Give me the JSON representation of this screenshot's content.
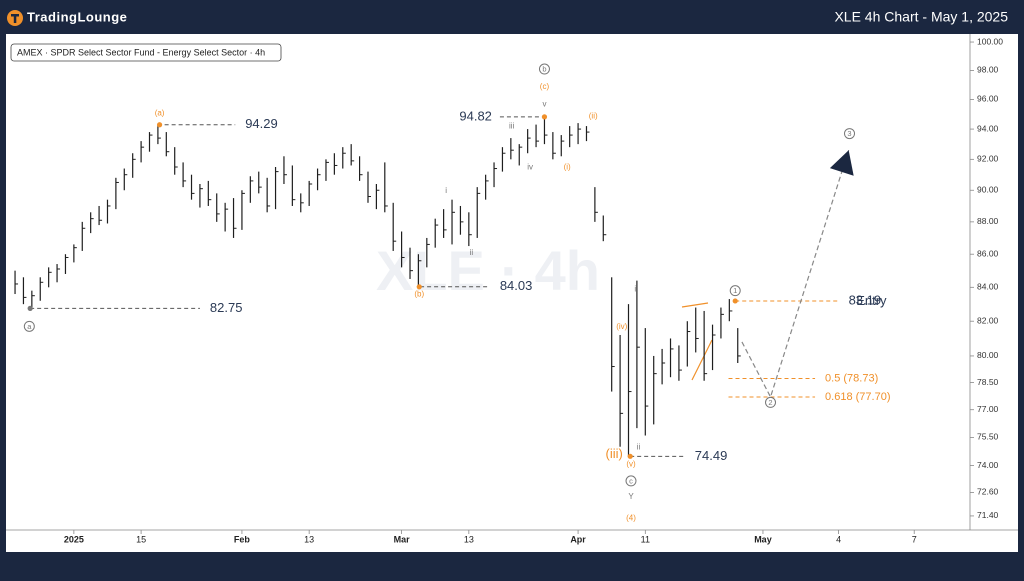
{
  "header": {
    "logo": "TradingLounge",
    "title": "XLE 4h Chart - May 1, 2025"
  },
  "chart_data": {
    "type": "ohlc",
    "symbol_label": "AMEX · SPDR Select Sector Fund - Energy Select Sector · 4h",
    "watermark": "XLE · 4h",
    "log_scale": true,
    "xlim": [
      -7.6,
      106.4
    ],
    "ylim": [
      70.79,
      100.43
    ],
    "xticks": [
      {
        "value": 0,
        "label": "2025"
      },
      {
        "value": 8,
        "label": "15"
      },
      {
        "value": 20,
        "label": "Feb"
      },
      {
        "value": 28,
        "label": "13"
      },
      {
        "value": 39,
        "label": "Mar"
      },
      {
        "value": 47,
        "label": "13"
      },
      {
        "value": 60,
        "label": "Apr"
      },
      {
        "value": 68,
        "label": "11"
      },
      {
        "value": 82,
        "label": "May"
      },
      {
        "value": 91,
        "label": "4"
      },
      {
        "value": 100,
        "label": "7"
      }
    ],
    "yticks": [
      {
        "value": 100,
        "label": "100.00"
      },
      {
        "value": 98,
        "label": "98.00"
      },
      {
        "value": 96,
        "label": "96.00"
      },
      {
        "value": 94,
        "label": "94.00"
      },
      {
        "value": 92,
        "label": "92.00"
      },
      {
        "value": 90,
        "label": "90.00"
      },
      {
        "value": 88,
        "label": "88.00"
      },
      {
        "value": 86,
        "label": "86.00"
      },
      {
        "value": 84,
        "label": "84.00"
      },
      {
        "value": 82,
        "label": "82.00"
      },
      {
        "value": 80,
        "label": "80.00"
      },
      {
        "value": 78.5,
        "label": "78.50"
      },
      {
        "value": 77,
        "label": "77.00"
      },
      {
        "value": 75.5,
        "label": "75.50"
      },
      {
        "value": 74,
        "label": "74.00"
      },
      {
        "value": 72.6,
        "label": "72.60"
      },
      {
        "value": 71.4,
        "label": "71.40"
      }
    ],
    "color": "#1e1e1e",
    "x": [
      -7,
      -6,
      -5,
      -4,
      -3,
      -2,
      -1,
      0,
      1,
      2,
      3,
      4,
      5,
      6,
      7,
      8,
      9,
      10,
      11,
      12,
      13,
      14,
      15,
      16,
      17,
      18,
      19,
      20,
      21,
      22,
      23,
      24,
      25,
      26,
      27,
      28,
      29,
      30,
      31,
      32,
      33,
      34,
      35,
      36,
      37,
      38,
      39,
      40,
      41,
      42,
      43,
      44,
      45,
      46,
      47,
      48,
      49,
      50,
      51,
      52,
      53,
      54,
      55,
      56,
      57,
      58,
      59,
      60,
      61,
      62,
      63,
      64,
      65,
      66,
      67,
      68,
      69,
      70,
      71,
      72,
      73,
      74,
      75,
      76,
      77,
      78,
      79
    ],
    "high": [
      85.0,
      84.6,
      83.8,
      84.6,
      85.2,
      85.4,
      86.0,
      86.6,
      88.0,
      88.6,
      89.0,
      89.4,
      90.8,
      91.4,
      92.4,
      93.2,
      93.8,
      94.29,
      93.8,
      92.8,
      91.8,
      91.0,
      90.4,
      90.6,
      89.8,
      89.2,
      89.5,
      90.0,
      90.9,
      91.2,
      90.8,
      91.5,
      92.2,
      91.6,
      89.8,
      90.6,
      91.4,
      92.0,
      92.4,
      92.8,
      93.0,
      92.2,
      91.2,
      90.4,
      91.8,
      89.2,
      87.4,
      86.4,
      86.0,
      87.0,
      88.2,
      88.8,
      89.4,
      89.0,
      88.6,
      90.2,
      91.0,
      91.8,
      92.8,
      93.4,
      93.0,
      94.0,
      94.3,
      94.82,
      93.8,
      93.6,
      94.2,
      94.4,
      94.2,
      90.2,
      88.4,
      84.6,
      81.2,
      83.0,
      84.4,
      81.6,
      80.0,
      80.4,
      81.0,
      80.6,
      82.0,
      82.8,
      82.6,
      81.8,
      82.8,
      83.3,
      81.6
    ],
    "low": [
      83.6,
      83.0,
      82.75,
      83.2,
      84.0,
      84.3,
      84.8,
      85.5,
      86.2,
      87.3,
      87.8,
      87.9,
      88.8,
      90.0,
      90.8,
      91.8,
      92.5,
      93.0,
      92.2,
      91.0,
      90.2,
      89.4,
      88.9,
      89.0,
      88.0,
      87.4,
      87.0,
      87.5,
      89.2,
      89.8,
      88.6,
      88.8,
      90.4,
      89.0,
      88.6,
      89.0,
      90.0,
      90.6,
      91.0,
      91.4,
      91.6,
      90.6,
      89.2,
      88.8,
      88.6,
      86.2,
      85.2,
      84.5,
      84.03,
      85.2,
      86.4,
      87.0,
      86.6,
      87.2,
      86.5,
      87.0,
      89.4,
      90.2,
      91.2,
      92.0,
      91.6,
      92.4,
      92.8,
      93.0,
      92.0,
      92.2,
      92.8,
      93.0,
      93.2,
      88.0,
      86.8,
      78.0,
      75.0,
      74.49,
      76.0,
      75.6,
      76.2,
      78.4,
      78.8,
      78.6,
      79.4,
      80.2,
      78.6,
      79.2,
      81.0,
      82.0,
      79.6
    ],
    "close": [
      84.2,
      83.4,
      83.5,
      84.3,
      84.9,
      85.1,
      85.8,
      86.4,
      87.6,
      88.2,
      88.1,
      89.0,
      90.5,
      91.0,
      92.0,
      92.8,
      93.6,
      93.4,
      92.5,
      91.5,
      90.6,
      89.8,
      90.1,
      89.4,
      88.5,
      88.8,
      87.6,
      89.8,
      90.6,
      90.2,
      89.0,
      91.2,
      91.0,
      89.4,
      89.2,
      90.4,
      91.0,
      91.8,
      91.6,
      92.4,
      91.9,
      91.0,
      89.6,
      90.0,
      89.0,
      86.8,
      85.8,
      85.0,
      85.6,
      86.6,
      87.8,
      87.5,
      88.6,
      88.0,
      87.2,
      89.8,
      90.6,
      91.4,
      92.4,
      92.6,
      92.8,
      93.4,
      93.2,
      93.6,
      92.4,
      93.2,
      93.6,
      94.0,
      93.8,
      88.6,
      87.2,
      79.4,
      76.8,
      78.0,
      80.5,
      77.2,
      79.0,
      79.6,
      80.4,
      79.2,
      81.4,
      81.0,
      79.0,
      81.2,
      82.4,
      82.6,
      80.0
    ],
    "levels": [
      {
        "value": 94.29,
        "from": 10.8,
        "to": 19.2,
        "color": "#555555",
        "text_color": "#2b3a55",
        "label_side": "right"
      },
      {
        "value": 82.75,
        "from": -5.2,
        "to": 15,
        "color": "#555555",
        "text_color": "#2b3a55",
        "label_side": "right"
      },
      {
        "value": 84.03,
        "from": 41.2,
        "to": 49.5,
        "color": "#555555",
        "text_color": "#2b3a55",
        "label_side": "right"
      },
      {
        "value": 94.82,
        "from": 50.7,
        "to": 56,
        "color": "#555555",
        "text_color": "#2b3a55",
        "label_side": "left"
      },
      {
        "value": 74.49,
        "from": 66.2,
        "to": 72.7,
        "color": "#555555",
        "text_color": "#2b3a55",
        "label_side": "right"
      },
      {
        "value": 83.19,
        "from": 78.7,
        "to": 91,
        "color": "#f0902a",
        "text_color": "#2b3a55",
        "label_side": "right"
      },
      {
        "value": 78.73,
        "text": "0.5 (78.73)",
        "from": 77.9,
        "to": 88.2,
        "color": "#f0902a",
        "text_color": "#f0902a",
        "label_side": "right"
      },
      {
        "value": 77.7,
        "text": "0.618 (77.70)",
        "from": 77.9,
        "to": 88.2,
        "color": "#f0902a",
        "text_color": "#f0902a",
        "label_side": "right"
      }
    ],
    "markers": [
      {
        "x": -5.2,
        "price": 82.75,
        "color": "#777777"
      },
      {
        "x": 10.2,
        "price": 94.29,
        "color": "#f0902a"
      },
      {
        "x": 41.1,
        "price": 84.03,
        "color": "#f0902a"
      },
      {
        "x": 56,
        "price": 94.82,
        "color": "#f0902a"
      },
      {
        "x": 66.2,
        "price": 74.49,
        "color": "#f0902a"
      },
      {
        "x": 78.7,
        "price": 83.19,
        "color": "#f0902a"
      }
    ],
    "annotations": [
      {
        "text": "a",
        "x": -5.3,
        "price": 81.7,
        "color": "#777777",
        "circled": true
      },
      {
        "text": "(a)",
        "x": 10.2,
        "price": 95.1,
        "color": "#f0902a",
        "circled": false
      },
      {
        "text": "(b)",
        "x": 41.1,
        "price": 83.6,
        "color": "#f0902a",
        "circled": false
      },
      {
        "text": "b",
        "x": 56,
        "price": 98.1,
        "color": "#777777",
        "circled": true
      },
      {
        "text": "(c)",
        "x": 56,
        "price": 96.9,
        "color": "#f0902a",
        "circled": false
      },
      {
        "text": "v",
        "x": 56,
        "price": 95.7,
        "color": "#777777",
        "circled": false
      },
      {
        "text": "iii",
        "x": 52.1,
        "price": 94.2,
        "color": "#777777",
        "circled": false
      },
      {
        "text": "iv",
        "x": 54.3,
        "price": 91.5,
        "color": "#777777",
        "circled": false
      },
      {
        "text": "(i)",
        "x": 58.7,
        "price": 91.5,
        "color": "#f0902a",
        "circled": false
      },
      {
        "text": "(ii)",
        "x": 61.8,
        "price": 94.9,
        "color": "#f0902a",
        "circled": false
      },
      {
        "text": "i",
        "x": 44.3,
        "price": 90.0,
        "color": "#777777",
        "circled": false
      },
      {
        "text": "ii",
        "x": 47.3,
        "price": 86.1,
        "color": "#777777",
        "circled": false
      },
      {
        "text": "i",
        "x": 66.8,
        "price": 83.9,
        "color": "#777777",
        "circled": false
      },
      {
        "text": "(iv)",
        "x": 65.2,
        "price": 81.7,
        "color": "#f0902a",
        "circled": false
      },
      {
        "text": "(iii)",
        "x": 64.3,
        "price": 74.6,
        "color": "#f0902a",
        "circled": false
      },
      {
        "text": "ii",
        "x": 67.2,
        "price": 75.0,
        "color": "#777777",
        "circled": false
      },
      {
        "text": "(v)",
        "x": 66.3,
        "price": 74.1,
        "color": "#f0902a",
        "circled": false
      },
      {
        "text": "c",
        "x": 66.3,
        "price": 73.2,
        "color": "#777777",
        "circled": true
      },
      {
        "text": "Y",
        "x": 66.3,
        "price": 72.4,
        "color": "#777777",
        "circled": false
      },
      {
        "text": "(4)",
        "x": 66.3,
        "price": 71.3,
        "color": "#f0902a",
        "circled": false
      },
      {
        "text": "1",
        "x": 78.7,
        "price": 83.8,
        "color": "#777777",
        "circled": true
      },
      {
        "text": "2",
        "x": 82.9,
        "price": 77.4,
        "color": "#777777",
        "circled": true
      },
      {
        "text": "3",
        "x": 92.3,
        "price": 93.7,
        "color": "#777777",
        "circled": true
      },
      {
        "text": "Entry",
        "x": 94.9,
        "price": 83.19,
        "color": "#2b3a55",
        "circled": false
      }
    ],
    "projection": {
      "x": [
        79.5,
        82.9,
        92.2
      ],
      "y": [
        80.8,
        77.7,
        92.6
      ],
      "color": "#888888"
    }
  }
}
